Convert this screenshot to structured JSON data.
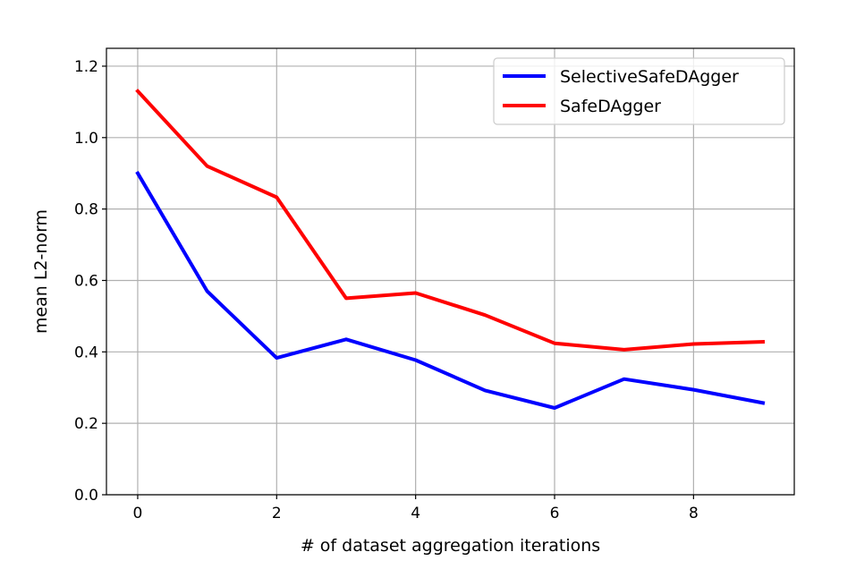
{
  "chart_data": {
    "type": "line",
    "xlabel": "# of dataset aggregation iterations",
    "ylabel": "mean L2-norm",
    "xlim": [
      -0.45,
      9.45
    ],
    "ylim": [
      0.0,
      1.25
    ],
    "xticks": [
      0,
      2,
      4,
      6,
      8
    ],
    "yticks": [
      0.0,
      0.2,
      0.4,
      0.6,
      0.8,
      1.0,
      1.2
    ],
    "xtick_labels": [
      "0",
      "2",
      "4",
      "6",
      "8"
    ],
    "ytick_labels": [
      "0.0",
      "0.2",
      "0.4",
      "0.6",
      "0.8",
      "1.0",
      "1.2"
    ],
    "grid": true,
    "legend_position": "top-right",
    "x": [
      0,
      1,
      2,
      3,
      4,
      5,
      6,
      7,
      8,
      9
    ],
    "series": [
      {
        "name": "SelectiveSafeDAgger",
        "color": "#0000ff",
        "values": [
          0.9,
          0.57,
          0.383,
          0.435,
          0.377,
          0.292,
          0.243,
          0.324,
          0.294,
          0.257
        ]
      },
      {
        "name": "SafeDAgger",
        "color": "#ff0000",
        "values": [
          1.13,
          0.92,
          0.833,
          0.55,
          0.565,
          0.503,
          0.424,
          0.406,
          0.422,
          0.428
        ]
      }
    ]
  }
}
